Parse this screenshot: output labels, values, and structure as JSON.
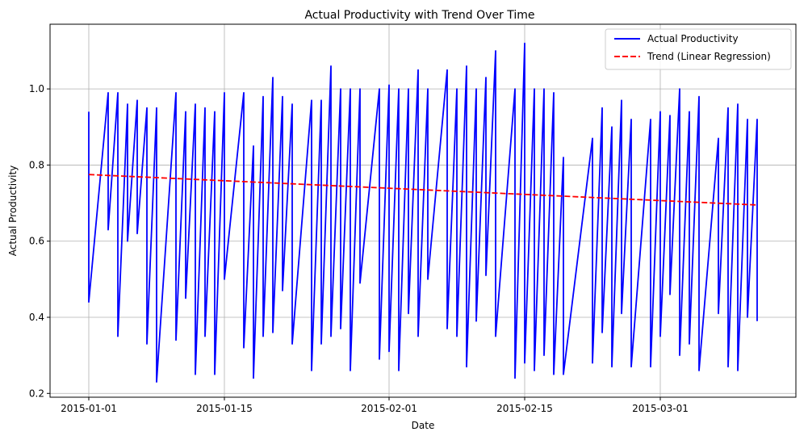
{
  "chart_data": {
    "type": "line",
    "title": "Actual Productivity with Trend Over Time",
    "xlabel": "Date",
    "ylabel": "Actual Productivity",
    "x_ticks": [
      "2015-01-01",
      "2015-01-15",
      "2015-02-01",
      "2015-02-15",
      "2015-03-01"
    ],
    "y_ticks": [
      "0.2",
      "0.4",
      "0.6",
      "0.8",
      "1.0"
    ],
    "xlim": [
      "2014-12-28",
      "2015-03-15"
    ],
    "ylim": [
      0.19,
      1.17
    ],
    "grid": true,
    "legend_position": "top-right",
    "series": [
      {
        "name": "Actual Productivity",
        "color": "#0000ff",
        "style": "solid",
        "points": [
          [
            "2015-01-01",
            0.94
          ],
          [
            "2015-01-01",
            0.44
          ],
          [
            "2015-01-03",
            0.99
          ],
          [
            "2015-01-03",
            0.63
          ],
          [
            "2015-01-04",
            0.99
          ],
          [
            "2015-01-04",
            0.35
          ],
          [
            "2015-01-05",
            0.96
          ],
          [
            "2015-01-05",
            0.6
          ],
          [
            "2015-01-06",
            0.97
          ],
          [
            "2015-01-06",
            0.62
          ],
          [
            "2015-01-07",
            0.95
          ],
          [
            "2015-01-07",
            0.33
          ],
          [
            "2015-01-08",
            0.95
          ],
          [
            "2015-01-08",
            0.23
          ],
          [
            "2015-01-10",
            0.99
          ],
          [
            "2015-01-10",
            0.34
          ],
          [
            "2015-01-11",
            0.94
          ],
          [
            "2015-01-11",
            0.45
          ],
          [
            "2015-01-12",
            0.96
          ],
          [
            "2015-01-12",
            0.25
          ],
          [
            "2015-01-13",
            0.95
          ],
          [
            "2015-01-13",
            0.35
          ],
          [
            "2015-01-14",
            0.94
          ],
          [
            "2015-01-14",
            0.25
          ],
          [
            "2015-01-15",
            0.99
          ],
          [
            "2015-01-15",
            0.5
          ],
          [
            "2015-01-17",
            0.99
          ],
          [
            "2015-01-17",
            0.32
          ],
          [
            "2015-01-18",
            0.85
          ],
          [
            "2015-01-18",
            0.24
          ],
          [
            "2015-01-19",
            0.98
          ],
          [
            "2015-01-19",
            0.35
          ],
          [
            "2015-01-20",
            1.03
          ],
          [
            "2015-01-20",
            0.36
          ],
          [
            "2015-01-21",
            0.98
          ],
          [
            "2015-01-21",
            0.47
          ],
          [
            "2015-01-22",
            0.96
          ],
          [
            "2015-01-22",
            0.33
          ],
          [
            "2015-01-24",
            0.97
          ],
          [
            "2015-01-24",
            0.26
          ],
          [
            "2015-01-25",
            0.97
          ],
          [
            "2015-01-25",
            0.33
          ],
          [
            "2015-01-26",
            1.06
          ],
          [
            "2015-01-26",
            0.35
          ],
          [
            "2015-01-27",
            1.0
          ],
          [
            "2015-01-27",
            0.37
          ],
          [
            "2015-01-28",
            1.0
          ],
          [
            "2015-01-28",
            0.26
          ],
          [
            "2015-01-29",
            1.0
          ],
          [
            "2015-01-29",
            0.49
          ],
          [
            "2015-01-31",
            1.0
          ],
          [
            "2015-01-31",
            0.29
          ],
          [
            "2015-02-01",
            1.01
          ],
          [
            "2015-02-01",
            0.31
          ],
          [
            "2015-02-02",
            1.0
          ],
          [
            "2015-02-02",
            0.26
          ],
          [
            "2015-02-03",
            1.0
          ],
          [
            "2015-02-03",
            0.41
          ],
          [
            "2015-02-04",
            1.05
          ],
          [
            "2015-02-04",
            0.35
          ],
          [
            "2015-02-05",
            1.0
          ],
          [
            "2015-02-05",
            0.5
          ],
          [
            "2015-02-07",
            1.05
          ],
          [
            "2015-02-07",
            0.37
          ],
          [
            "2015-02-08",
            1.0
          ],
          [
            "2015-02-08",
            0.35
          ],
          [
            "2015-02-09",
            1.06
          ],
          [
            "2015-02-09",
            0.27
          ],
          [
            "2015-02-10",
            1.0
          ],
          [
            "2015-02-10",
            0.39
          ],
          [
            "2015-02-11",
            1.03
          ],
          [
            "2015-02-11",
            0.51
          ],
          [
            "2015-02-12",
            1.1
          ],
          [
            "2015-02-12",
            0.35
          ],
          [
            "2015-02-14",
            1.0
          ],
          [
            "2015-02-14",
            0.24
          ],
          [
            "2015-02-15",
            1.12
          ],
          [
            "2015-02-15",
            0.28
          ],
          [
            "2015-02-16",
            1.0
          ],
          [
            "2015-02-16",
            0.26
          ],
          [
            "2015-02-17",
            1.0
          ],
          [
            "2015-02-17",
            0.3
          ],
          [
            "2015-02-18",
            0.99
          ],
          [
            "2015-02-18",
            0.25
          ],
          [
            "2015-02-19",
            0.82
          ],
          [
            "2015-02-19",
            0.25
          ],
          [
            "2015-02-22",
            0.87
          ],
          [
            "2015-02-22",
            0.28
          ],
          [
            "2015-02-23",
            0.95
          ],
          [
            "2015-02-23",
            0.36
          ],
          [
            "2015-02-24",
            0.9
          ],
          [
            "2015-02-24",
            0.27
          ],
          [
            "2015-02-25",
            0.97
          ],
          [
            "2015-02-25",
            0.41
          ],
          [
            "2015-02-26",
            0.92
          ],
          [
            "2015-02-26",
            0.27
          ],
          [
            "2015-02-28",
            0.92
          ],
          [
            "2015-02-28",
            0.27
          ],
          [
            "2015-03-01",
            0.94
          ],
          [
            "2015-03-01",
            0.35
          ],
          [
            "2015-03-02",
            0.93
          ],
          [
            "2015-03-02",
            0.46
          ],
          [
            "2015-03-03",
            1.0
          ],
          [
            "2015-03-03",
            0.3
          ],
          [
            "2015-03-04",
            0.94
          ],
          [
            "2015-03-04",
            0.33
          ],
          [
            "2015-03-05",
            0.98
          ],
          [
            "2015-03-05",
            0.26
          ],
          [
            "2015-03-07",
            0.87
          ],
          [
            "2015-03-07",
            0.41
          ],
          [
            "2015-03-08",
            0.95
          ],
          [
            "2015-03-08",
            0.27
          ],
          [
            "2015-03-09",
            0.96
          ],
          [
            "2015-03-09",
            0.26
          ],
          [
            "2015-03-10",
            0.92
          ],
          [
            "2015-03-10",
            0.4
          ],
          [
            "2015-03-11",
            0.92
          ],
          [
            "2015-03-11",
            0.39
          ]
        ]
      },
      {
        "name": "Trend (Linear Regression)",
        "color": "#ff0000",
        "style": "dashed",
        "points": [
          [
            "2015-01-01",
            0.775
          ],
          [
            "2015-03-11",
            0.695
          ]
        ]
      }
    ]
  }
}
